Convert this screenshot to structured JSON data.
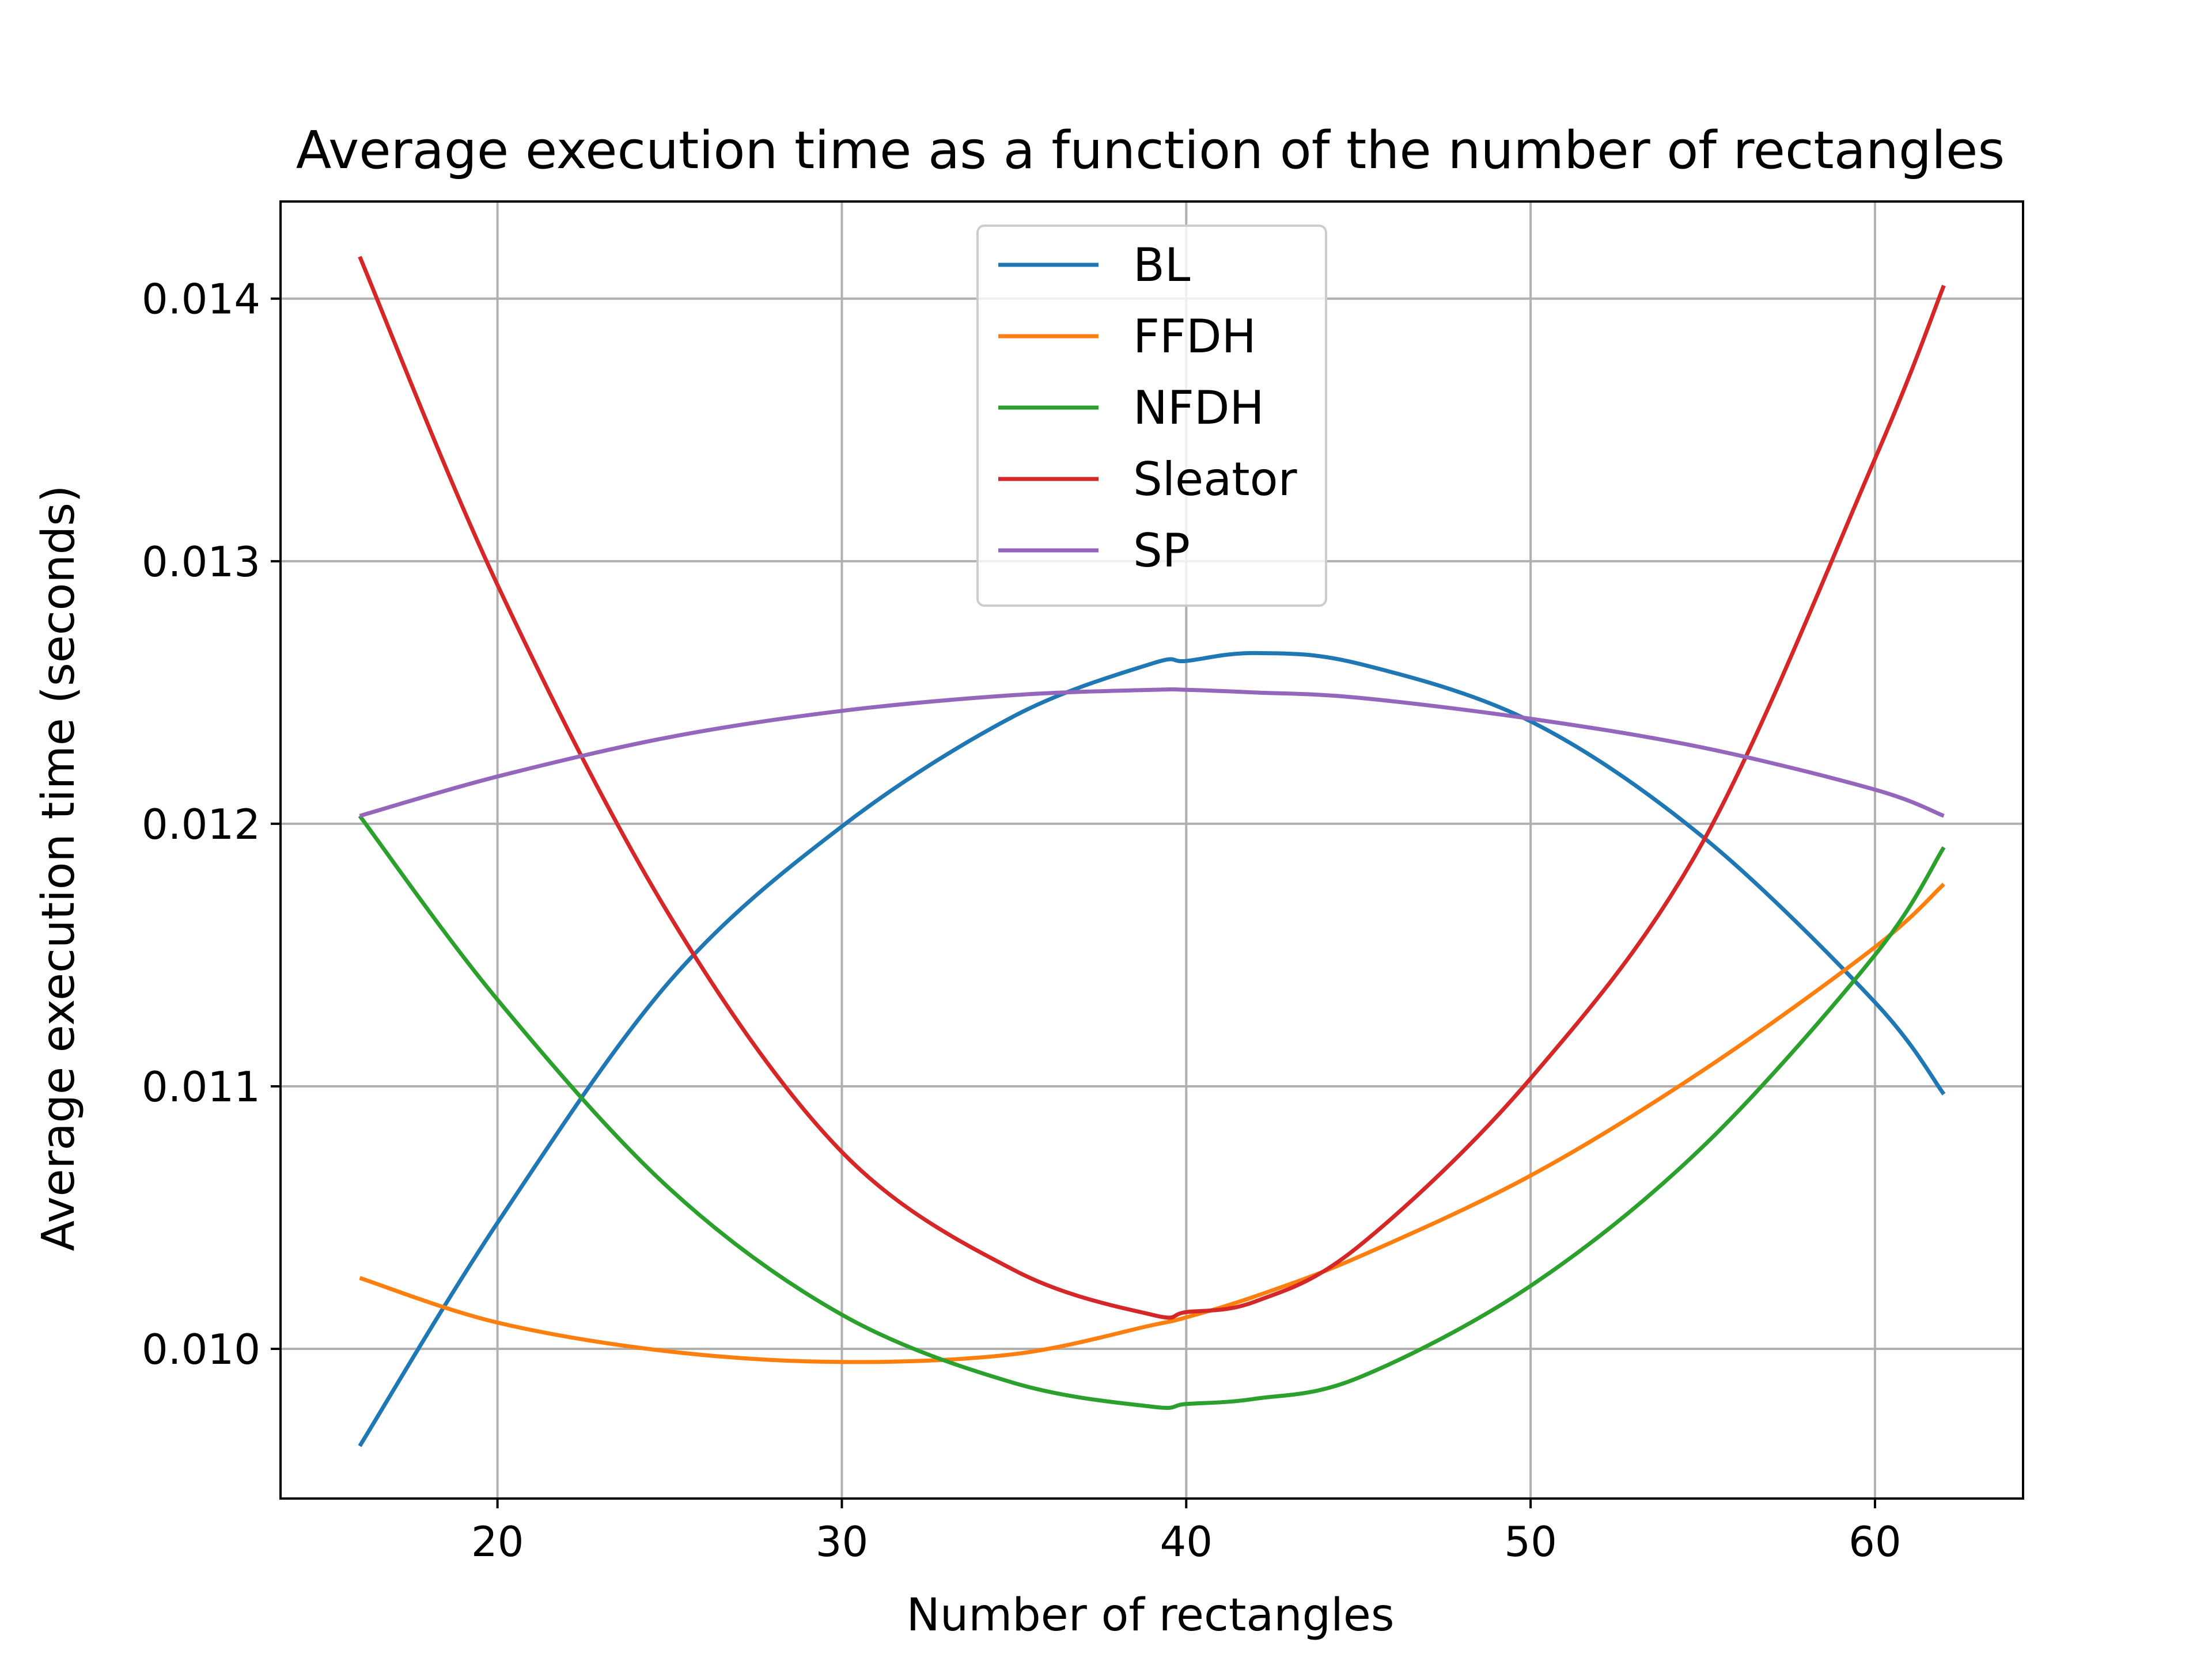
{
  "chart_data": {
    "type": "line",
    "title": "Average execution time as a function of the number of rectangles",
    "xlabel": "Number of rectangles",
    "ylabel": "Average execution time (seconds)",
    "xlim": [
      13.7,
      64.3
    ],
    "ylim": [
      0.00943,
      0.01437
    ],
    "xticks": [
      20,
      30,
      40,
      50,
      60
    ],
    "yticks": [
      0.01,
      0.011,
      0.012,
      0.013,
      0.014
    ],
    "xtick_labels": [
      "20",
      "30",
      "40",
      "50",
      "60"
    ],
    "ytick_labels": [
      "0.010",
      "0.011",
      "0.012",
      "0.013",
      "0.014"
    ],
    "grid": true,
    "legend_position": "upper center",
    "x": [
      16,
      20,
      25,
      30,
      35,
      39,
      40,
      42,
      45,
      50,
      55,
      60,
      62
    ],
    "series": [
      {
        "name": "BL",
        "color": "#1f77b4",
        "values": [
          0.00963,
          0.01048,
          0.0114,
          0.01199,
          0.01241,
          0.01261,
          0.01262,
          0.01265,
          0.01261,
          0.01239,
          0.01195,
          0.01132,
          0.01097
        ]
      },
      {
        "name": "FFDH",
        "color": "#ff7f0e",
        "values": [
          0.01027,
          0.0101,
          0.00999,
          0.00995,
          0.00998,
          0.01009,
          0.01012,
          0.0102,
          0.01035,
          0.01066,
          0.01106,
          0.01153,
          0.01177
        ]
      },
      {
        "name": "NFDH",
        "color": "#2ca02c",
        "values": [
          0.01203,
          0.01133,
          0.01061,
          0.01013,
          0.00987,
          0.00978,
          0.00979,
          0.00981,
          0.00989,
          0.01024,
          0.01077,
          0.0115,
          0.01191
        ]
      },
      {
        "name": "Sleator",
        "color": "#d62728",
        "values": [
          0.01416,
          0.01291,
          0.01165,
          0.01075,
          0.0103,
          0.01013,
          0.01014,
          0.01018,
          0.01039,
          0.01103,
          0.01193,
          0.01339,
          0.01405
        ]
      },
      {
        "name": "SP",
        "color": "#9467bd",
        "values": [
          0.01203,
          0.01218,
          0.01233,
          0.01243,
          0.01249,
          0.01251,
          0.01251,
          0.0125,
          0.01248,
          0.0124,
          0.01229,
          0.01213,
          0.01203
        ]
      }
    ]
  }
}
